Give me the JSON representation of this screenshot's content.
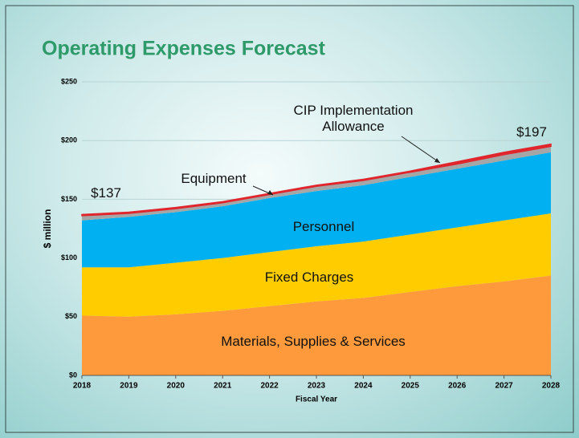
{
  "chart_data": {
    "type": "stacked_area",
    "title": "Operating Expenses Forecast",
    "xlabel": "Fiscal Year",
    "ylabel": "$ million",
    "x": [
      2018,
      2019,
      2020,
      2021,
      2022,
      2023,
      2024,
      2025,
      2026,
      2027,
      2028
    ],
    "series": [
      {
        "name": "Materials, Supplies & Services",
        "color": "#ff9a3c",
        "values": [
          51,
          50,
          52,
          55,
          59,
          63,
          66,
          71,
          76,
          80,
          85
        ]
      },
      {
        "name": "Fixed Charges",
        "color": "#ffcc00",
        "values": [
          41,
          42,
          44,
          45,
          46,
          47,
          48,
          49,
          50,
          52,
          53
        ]
      },
      {
        "name": "Personnel",
        "color": "#00b0f0",
        "values": [
          40,
          43,
          43,
          44,
          46,
          47,
          48,
          49,
          50,
          51,
          52
        ]
      },
      {
        "name": "Equipment",
        "color": "#a6a6a6",
        "values": [
          4,
          3,
          3,
          3,
          3,
          4,
          4,
          4,
          4,
          5,
          5
        ]
      },
      {
        "name": "CIP Implementation Allowance",
        "color": "#e0262c",
        "values": [
          1,
          1,
          1,
          1,
          1,
          1,
          1,
          1,
          2,
          2,
          2
        ]
      }
    ],
    "annotations": [
      {
        "text": "$137"
      },
      {
        "text": "$197"
      }
    ],
    "xlim": [
      2018,
      2028
    ],
    "xticks": [
      2018,
      2019,
      2020,
      2021,
      2022,
      2023,
      2024,
      2025,
      2026,
      2027,
      2028
    ],
    "ylim": [
      0,
      250
    ],
    "yticks": [
      {
        "value": 0,
        "label": "$0"
      },
      {
        "value": 50,
        "label": "$50"
      },
      {
        "value": 100,
        "label": "$100"
      },
      {
        "value": 150,
        "label": "$150"
      },
      {
        "value": 200,
        "label": "$200"
      },
      {
        "value": 250,
        "label": "$250"
      }
    ],
    "grid": true
  }
}
